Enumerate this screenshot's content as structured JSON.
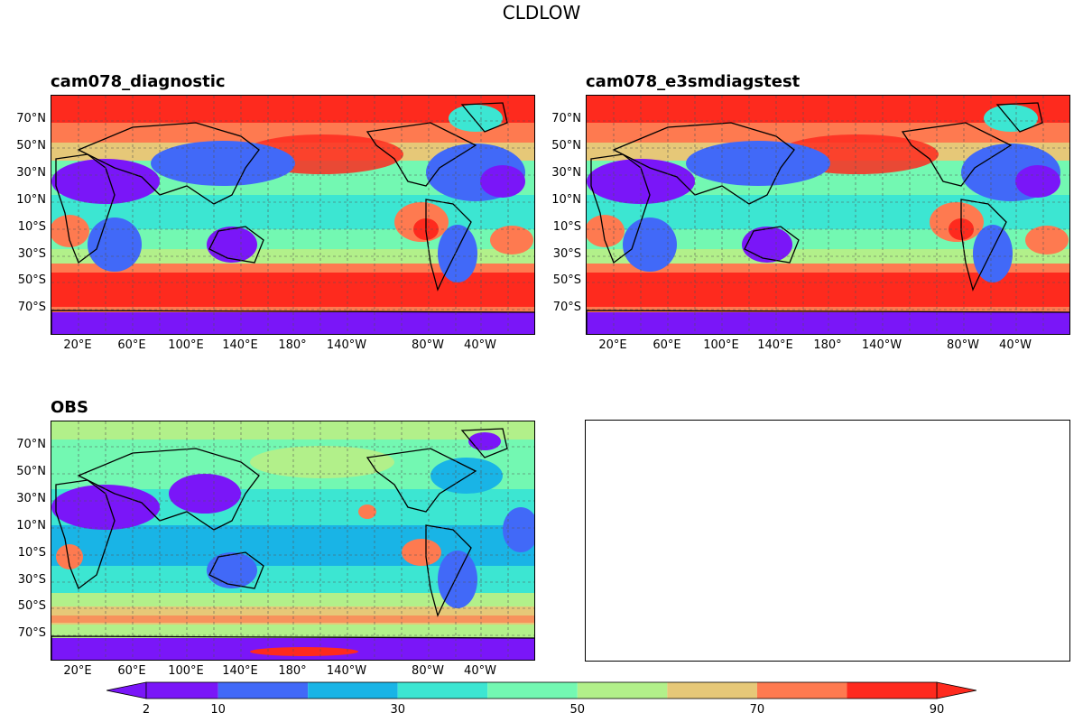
{
  "figure": {
    "title": "CLDLOW"
  },
  "panels": [
    {
      "title": "cam078_diagnostic",
      "kind": "model"
    },
    {
      "title": "cam078_e3smdiagstest",
      "kind": "model"
    },
    {
      "title": "OBS",
      "kind": "obs"
    },
    {
      "title": "",
      "kind": "empty"
    }
  ],
  "lat_ticks": [
    "70°N",
    "50°N",
    "30°N",
    "10°N",
    "10°S",
    "30°S",
    "50°S",
    "70°S"
  ],
  "lon_ticks": [
    "20°E",
    "60°E",
    "100°E",
    "140°E",
    "180°",
    "140°W",
    "80°W",
    "40°W"
  ],
  "colorbar": {
    "levels": [
      2,
      10,
      20,
      30,
      40,
      50,
      60,
      70,
      80,
      90
    ],
    "tick_labels": [
      "2",
      "10",
      "30",
      "50",
      "70",
      "90"
    ],
    "colors": [
      "#7a16f8",
      "#4169f8",
      "#19b4e6",
      "#3ce6d2",
      "#73f8b2",
      "#b2f08a",
      "#e6c878",
      "#fe7a50",
      "#fe2a1e"
    ],
    "extend": "both"
  },
  "colors": {
    "land_outline": "#000000",
    "grid": "#555555"
  }
}
